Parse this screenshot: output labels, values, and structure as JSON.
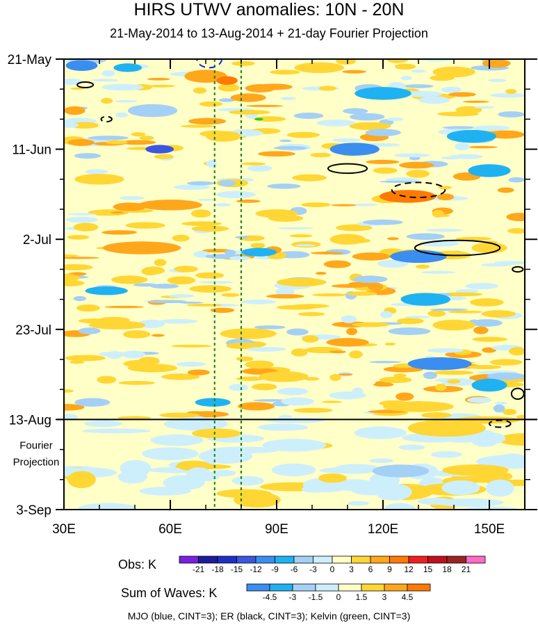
{
  "chart_data": {
    "type": "heatmap",
    "title": "HIRS UTWV anomalies: 10N - 20N",
    "subtitle": "21-May-2014 to 13-Aug-2014 + 21-day Fourier Projection",
    "x_ticks": [
      {
        "value": 30,
        "label": "30E"
      },
      {
        "value": 60,
        "label": "60E"
      },
      {
        "value": 90,
        "label": "90E"
      },
      {
        "value": 120,
        "label": "120E"
      },
      {
        "value": 150,
        "label": "150E"
      }
    ],
    "xlim": [
      30,
      160
    ],
    "y_ticks": [
      {
        "day": 0,
        "label": "21-May"
      },
      {
        "day": 21,
        "label": "11-Jun"
      },
      {
        "day": 42,
        "label": "2-Jul"
      },
      {
        "day": 63,
        "label": "23-Jul"
      },
      {
        "day": 84,
        "label": "13-Aug"
      },
      {
        "day": 105,
        "label": "3-Sep"
      }
    ],
    "ylim_days": [
      0,
      105
    ],
    "observation_end_day": 84,
    "projection_label_line1": "Fourier",
    "projection_label_line2": "Projection",
    "reference_longitudes": [
      72.5,
      80
    ],
    "obs_colorbar": {
      "label": "Obs: K",
      "levels": [
        "-21",
        "-18",
        "-15",
        "-12",
        "-9",
        "-6",
        "-3",
        "0",
        "3",
        "6",
        "9",
        "12",
        "15",
        "18",
        "21"
      ],
      "colors": [
        "#7a1fe0",
        "#1c1c9e",
        "#1f2fc4",
        "#3b57e0",
        "#3a8ef0",
        "#1eb2f2",
        "#a4d0f5",
        "#cdeffc",
        "#ffffc8",
        "#ffd633",
        "#ffa71a",
        "#ff7a00",
        "#f01f1f",
        "#c0101a",
        "#9c2323",
        "#ff69c8"
      ]
    },
    "waves_colorbar": {
      "label": "Sum of Waves: K",
      "levels": [
        "-4.5",
        "-3",
        "-1.5",
        "0",
        "1.5",
        "3",
        "4.5"
      ],
      "colors": [
        "#3a8ef0",
        "#1eb2f2",
        "#a4d0f5",
        "#cdeffc",
        "#ffffc8",
        "#ffd633",
        "#ffa71a",
        "#ff7a00"
      ]
    },
    "anomaly_blobs": [
      {
        "lon": 35,
        "day": 1.5,
        "w": 9,
        "h": 2.5,
        "level": 4
      },
      {
        "lon": 48,
        "day": 2,
        "w": 8,
        "h": 2,
        "level": 5
      },
      {
        "lon": 70,
        "day": 4,
        "w": 12,
        "h": 3,
        "level": 10
      },
      {
        "lon": 76,
        "day": 5,
        "w": 6,
        "h": 2,
        "level": 11
      },
      {
        "lon": 102,
        "day": 2,
        "w": 14,
        "h": 2.5,
        "level": 9
      },
      {
        "lon": 140,
        "day": 3,
        "w": 12,
        "h": 2.5,
        "level": 9
      },
      {
        "lon": 152,
        "day": 1,
        "w": 8,
        "h": 2,
        "level": 10
      },
      {
        "lon": 82,
        "day": 9,
        "w": 10,
        "h": 2,
        "level": 10
      },
      {
        "lon": 120,
        "day": 8,
        "w": 16,
        "h": 3,
        "level": 5
      },
      {
        "lon": 55,
        "day": 12,
        "w": 14,
        "h": 3,
        "level": 6
      },
      {
        "lon": 33,
        "day": 12,
        "w": 6,
        "h": 2,
        "level": 10
      },
      {
        "lon": 57,
        "day": 21,
        "w": 8,
        "h": 2,
        "level": 3
      },
      {
        "lon": 75,
        "day": 18,
        "w": 10,
        "h": 2.5,
        "level": 9
      },
      {
        "lon": 112,
        "day": 21,
        "w": 14,
        "h": 3,
        "level": 4
      },
      {
        "lon": 145,
        "day": 18,
        "w": 14,
        "h": 3,
        "level": 5
      },
      {
        "lon": 40,
        "day": 28,
        "w": 14,
        "h": 2.5,
        "level": 9
      },
      {
        "lon": 60,
        "day": 34,
        "w": 18,
        "h": 2.5,
        "level": 10
      },
      {
        "lon": 90,
        "day": 36,
        "w": 12,
        "h": 2,
        "level": 9
      },
      {
        "lon": 127,
        "day": 32,
        "w": 16,
        "h": 3,
        "level": 11
      },
      {
        "lon": 150,
        "day": 26,
        "w": 12,
        "h": 3,
        "level": 5
      },
      {
        "lon": 52,
        "day": 44,
        "w": 22,
        "h": 3,
        "level": 10
      },
      {
        "lon": 85,
        "day": 45,
        "w": 10,
        "h": 2,
        "level": 5
      },
      {
        "lon": 110,
        "day": 42,
        "w": 10,
        "h": 2.5,
        "level": 9
      },
      {
        "lon": 130,
        "day": 46,
        "w": 16,
        "h": 3,
        "level": 4
      },
      {
        "lon": 150,
        "day": 44,
        "w": 10,
        "h": 2.5,
        "level": 9
      },
      {
        "lon": 42,
        "day": 54,
        "w": 12,
        "h": 2,
        "level": 5
      },
      {
        "lon": 97,
        "day": 52,
        "w": 14,
        "h": 2,
        "level": 9
      },
      {
        "lon": 132,
        "day": 56,
        "w": 14,
        "h": 3,
        "level": 5
      },
      {
        "lon": 140,
        "day": 62,
        "w": 12,
        "h": 2.5,
        "level": 9
      },
      {
        "lon": 45,
        "day": 62,
        "w": 16,
        "h": 2,
        "level": 9
      },
      {
        "lon": 82,
        "day": 64,
        "w": 16,
        "h": 2.5,
        "level": 9
      },
      {
        "lon": 110,
        "day": 66,
        "w": 12,
        "h": 2,
        "level": 10
      },
      {
        "lon": 136,
        "day": 71,
        "w": 18,
        "h": 3,
        "level": 4
      },
      {
        "lon": 55,
        "day": 72,
        "w": 14,
        "h": 2,
        "level": 9
      },
      {
        "lon": 92,
        "day": 74,
        "w": 14,
        "h": 2.5,
        "level": 9
      },
      {
        "lon": 150,
        "day": 76,
        "w": 10,
        "h": 3,
        "level": 5
      },
      {
        "lon": 38,
        "day": 80,
        "w": 10,
        "h": 2,
        "level": 6
      },
      {
        "lon": 72,
        "day": 80,
        "w": 10,
        "h": 2,
        "level": 5
      },
      {
        "lon": 130,
        "day": 81,
        "w": 20,
        "h": 2.5,
        "level": 9
      },
      {
        "lon": 35,
        "day": 98,
        "w": 8,
        "h": 4,
        "level": 9
      },
      {
        "lon": 138,
        "day": 86,
        "w": 22,
        "h": 4,
        "level": 9
      },
      {
        "lon": 95,
        "day": 90,
        "w": 18,
        "h": 3,
        "level": 7
      },
      {
        "lon": 125,
        "day": 96,
        "w": 16,
        "h": 3,
        "level": 6
      },
      {
        "lon": 153,
        "day": 100,
        "w": 8,
        "h": 4,
        "level": 7
      },
      {
        "lon": 60,
        "day": 92,
        "w": 16,
        "h": 3,
        "level": 7
      }
    ],
    "wave_contours": [
      {
        "wave": "MJO",
        "lon": 71,
        "day": 0,
        "w": 7,
        "h": 4,
        "sign": "negative"
      },
      {
        "wave": "ER",
        "lon": 36,
        "day": 6,
        "w": 4.5,
        "h": 1.3,
        "sign": "positive"
      },
      {
        "wave": "ER",
        "lon": 42,
        "day": 14,
        "w": 3,
        "h": 1.2,
        "sign": "negative"
      },
      {
        "wave": "ER",
        "lon": 110,
        "day": 25.5,
        "w": 11,
        "h": 2.2,
        "sign": "positive"
      },
      {
        "wave": "ER",
        "lon": 130,
        "day": 30.5,
        "w": 15,
        "h": 3.5,
        "sign": "negative"
      },
      {
        "wave": "ER",
        "lon": 141,
        "day": 44,
        "w": 24,
        "h": 3.5,
        "sign": "positive"
      },
      {
        "wave": "ER",
        "lon": 158,
        "day": 49,
        "w": 3,
        "h": 1.2,
        "sign": "positive"
      },
      {
        "wave": "ER",
        "lon": 158,
        "day": 78,
        "w": 3.5,
        "h": 2.5,
        "sign": "positive"
      },
      {
        "wave": "ER",
        "lon": 153,
        "day": 85,
        "w": 6,
        "h": 1.6,
        "sign": "negative"
      },
      {
        "wave": "Kelvin",
        "lon": 85,
        "day": 14,
        "w": 2,
        "h": 0.3,
        "sign": "positive"
      }
    ],
    "wave_colors": {
      "MJO": "#2222dd",
      "ER": "#000000",
      "Kelvin": "#22cc22"
    },
    "footer": "MJO (blue, CINT=3); ER (black, CINT=3); Kelvin (green, CINT=3)"
  }
}
